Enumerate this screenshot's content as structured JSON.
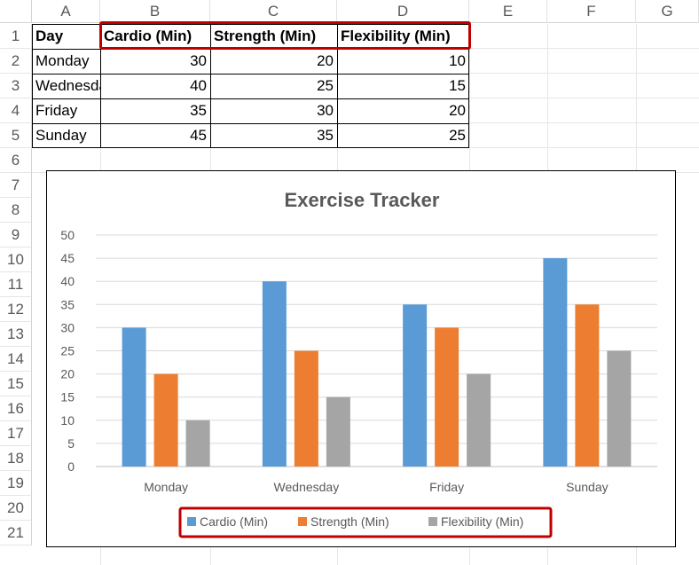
{
  "sheet": {
    "columns": [
      "A",
      "B",
      "C",
      "D",
      "E",
      "F",
      "G"
    ],
    "rows": [
      "1",
      "2",
      "3",
      "4",
      "5",
      "6",
      "7",
      "8",
      "9",
      "10",
      "11",
      "12",
      "13",
      "14",
      "15",
      "16",
      "17",
      "18",
      "19",
      "20",
      "21"
    ],
    "headers": [
      "Day",
      "Cardio (Min)",
      "Strength (Min)",
      "Flexibility (Min)"
    ],
    "data": [
      {
        "day": "Monday",
        "cardio": "30",
        "strength": "20",
        "flex": "10"
      },
      {
        "day": "Wednesday",
        "cardio": "40",
        "strength": "25",
        "flex": "15"
      },
      {
        "day": "Friday",
        "cardio": "35",
        "strength": "30",
        "flex": "20"
      },
      {
        "day": "Sunday",
        "cardio": "45",
        "strength": "35",
        "flex": "25"
      }
    ],
    "highlight_color": "#c00000"
  },
  "chart_data": {
    "type": "bar",
    "title": "Exercise Tracker",
    "categories": [
      "Monday",
      "Wednesday",
      "Friday",
      "Sunday"
    ],
    "series": [
      {
        "name": "Cardio (Min)",
        "values": [
          30,
          40,
          35,
          45
        ],
        "color": "#5b9bd5"
      },
      {
        "name": "Strength (Min)",
        "values": [
          20,
          25,
          30,
          35
        ],
        "color": "#ed7d31"
      },
      {
        "name": "Flexibility (Min)",
        "values": [
          10,
          15,
          20,
          25
        ],
        "color": "#a5a5a5"
      }
    ],
    "ylim": [
      0,
      50
    ],
    "yticks": [
      "0",
      "5",
      "10",
      "15",
      "20",
      "25",
      "30",
      "35",
      "40",
      "45",
      "50"
    ],
    "grid": true,
    "legend": "bottom",
    "xlabel": "",
    "ylabel": ""
  }
}
